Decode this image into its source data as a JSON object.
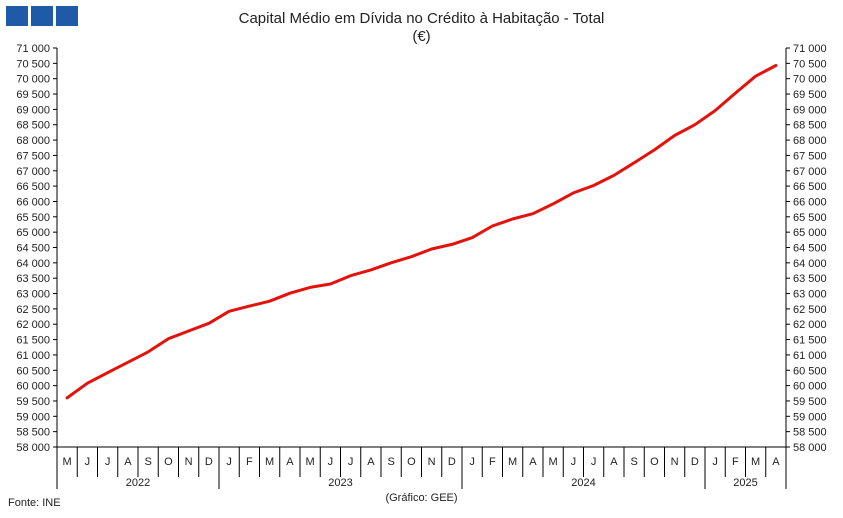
{
  "header": {
    "title": "Capital Médio em Dívida no Crédito à Habitação - Total",
    "subtitle": "(€)"
  },
  "footer": {
    "source": "Fonte: INE",
    "credit": "(Gráfico: GEE)"
  },
  "colors": {
    "line": "#e3120b",
    "logo": "#1f5aa6",
    "axis": "#000000"
  },
  "chart_data": {
    "type": "line",
    "title": "Capital Médio em Dívida no Crédito à Habitação - Total",
    "subtitle": "(€)",
    "grid": false,
    "legend": "none",
    "ylim": [
      58000,
      71000
    ],
    "yticks": [
      "58 000",
      "58 500",
      "59 000",
      "59 500",
      "60 000",
      "60 500",
      "61 000",
      "61 500",
      "62 000",
      "62 500",
      "63 000",
      "63 500",
      "64 000",
      "64 500",
      "65 000",
      "65 500",
      "66 000",
      "66 500",
      "67 000",
      "67 500",
      "68 000",
      "68 500",
      "69 000",
      "69 500",
      "70 000",
      "70 500",
      "71 000"
    ],
    "ytick_values": [
      58000,
      58500,
      59000,
      59500,
      60000,
      60500,
      61000,
      61500,
      62000,
      62500,
      63000,
      63500,
      64000,
      64500,
      65000,
      65500,
      66000,
      66500,
      67000,
      67500,
      68000,
      68500,
      69000,
      69500,
      70000,
      70500,
      71000
    ],
    "categories": [
      "M",
      "J",
      "J",
      "A",
      "S",
      "O",
      "N",
      "D",
      "J",
      "F",
      "M",
      "A",
      "M",
      "J",
      "J",
      "A",
      "S",
      "O",
      "N",
      "D",
      "J",
      "F",
      "M",
      "A",
      "M",
      "J",
      "J",
      "A",
      "S",
      "O",
      "N",
      "D",
      "J",
      "F",
      "M",
      "A"
    ],
    "years": [
      {
        "label": "2022",
        "months": 8
      },
      {
        "label": "2023",
        "months": 12
      },
      {
        "label": "2024",
        "months": 12
      },
      {
        "label": "2025",
        "months": 4
      }
    ],
    "series": [
      {
        "values": [
          59600,
          60080,
          60420,
          60760,
          61100,
          61530,
          61780,
          62030,
          62420,
          62590,
          62750,
          63010,
          63200,
          63310,
          63580,
          63770,
          64000,
          64200,
          64450,
          64600,
          64820,
          65200,
          65430,
          65600,
          65920,
          66280,
          66520,
          66850,
          67260,
          67680,
          68150,
          68500,
          68960,
          69530,
          70080,
          70430
        ]
      }
    ]
  }
}
